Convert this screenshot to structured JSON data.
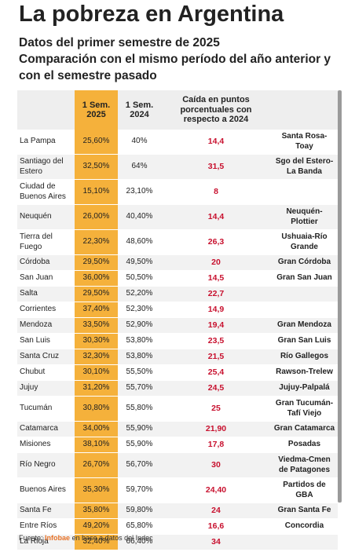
{
  "header": {
    "title": "La pobreza en Argentina",
    "subtitle": [
      "Datos del primer semestre de 2025",
      "Comparación con el mismo período del año anterior y",
      "con el semestre pasado"
    ]
  },
  "table": {
    "columns": [
      null,
      "1 Sem. 2025",
      "1 Sem. 2024",
      "Caída en puntos porcentuales con respecto a 2024",
      null
    ],
    "rows": [
      [
        "La Pampa",
        "25,60%",
        "40%",
        "14,4",
        "Santa Rosa-Toay"
      ],
      [
        "Santiago del Estero",
        "32,50%",
        "64%",
        "31,5",
        "Sgo del Estero-La Banda"
      ],
      [
        "Ciudad de Buenos Aires",
        "15,10%",
        "23,10%",
        "8",
        null
      ],
      [
        "Neuquén",
        "26,00%",
        "40,40%",
        "14,4",
        "Neuquén-Plottier"
      ],
      [
        "Tierra del Fuego",
        "22,30%",
        "48,60%",
        "26,3",
        "Ushuaia-Río Grande"
      ],
      [
        "Córdoba",
        "29,50%",
        "49,50%",
        "20",
        "Gran Córdoba"
      ],
      [
        "San Juan",
        "36,00%",
        "50,50%",
        "14,5",
        "Gran San Juan"
      ],
      [
        "Salta",
        "29,50%",
        "52,20%",
        "22,7",
        null
      ],
      [
        "Corrientes",
        "37,40%",
        "52,30%",
        "14,9",
        null
      ],
      [
        "Mendoza",
        "33,50%",
        "52,90%",
        "19,4",
        "Gran Mendoza"
      ],
      [
        "San Luis",
        "30,30%",
        "53,80%",
        "23,5",
        "Gran San Luis"
      ],
      [
        "Santa Cruz",
        "32,30%",
        "53,80%",
        "21,5",
        "Río Gallegos"
      ],
      [
        "Chubut",
        "30,10%",
        "55,50%",
        "25,4",
        "Rawson-Trelew"
      ],
      [
        "Jujuy",
        "31,20%",
        "55,70%",
        "24,5",
        "Jujuy-Palpalá"
      ],
      [
        "Tucumán",
        "30,80%",
        "55,80%",
        "25",
        "Gran Tucumán-Tafí Viejo"
      ],
      [
        "Catamarca",
        "34,00%",
        "55,90%",
        "21,90",
        "Gran Catamarca"
      ],
      [
        "Misiones",
        "38,10%",
        "55,90%",
        "17,8",
        "Posadas"
      ],
      [
        "Río Negro",
        "26,70%",
        "56,70%",
        "30",
        "Viedma-Cmen de Patagones"
      ],
      [
        "Buenos Aires",
        "35,30%",
        "59,70%",
        "24,40",
        "Partidos de GBA"
      ],
      [
        "Santa Fe",
        "35,80%",
        "59,80%",
        "24",
        "Gran Santa Fe"
      ],
      [
        "Entre Ríos",
        "49,20%",
        "65,80%",
        "16,6",
        "Concordia"
      ],
      [
        "La Rioja",
        "32,40%",
        "66,40%",
        "34",
        null
      ]
    ]
  },
  "footer": {
    "prefix": "Fuente:",
    "brand": "Infobae",
    "rest": "en base a datos del Indec"
  }
}
